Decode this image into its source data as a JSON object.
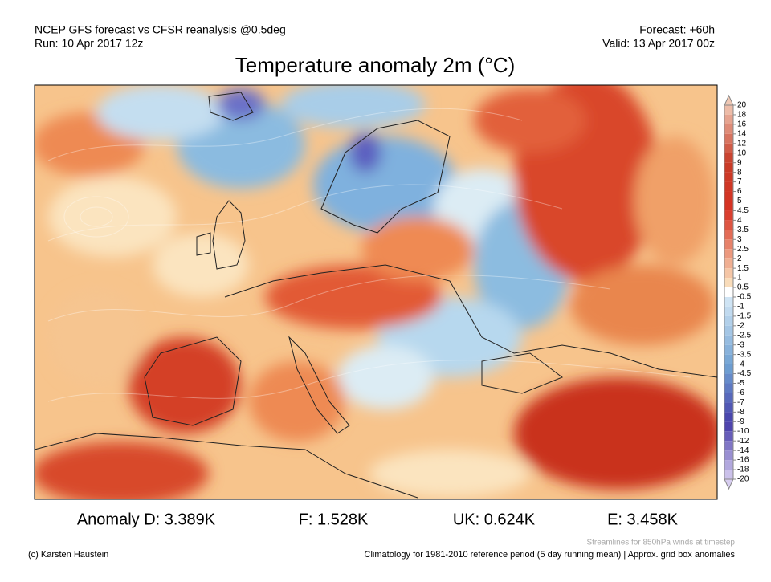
{
  "header": {
    "left_line1": "NCEP GFS forecast vs CFSR reanalysis @0.5deg",
    "left_line2": "Run: 10 Apr 2017 12z",
    "right_line1": "Forecast: +60h",
    "right_line2": "Valid: 13 Apr 2017 00z",
    "title": "Temperature anomaly 2m (°C)"
  },
  "colorbar": {
    "levels": [
      20,
      18,
      16,
      14,
      12,
      10,
      9,
      8,
      7,
      6,
      5,
      4.5,
      4,
      3.5,
      3,
      2.5,
      2,
      1.5,
      1,
      0.5,
      -0.5,
      -1,
      -1.5,
      -2,
      -2.5,
      -3,
      -3.5,
      -4,
      -4.5,
      -5,
      -6,
      -7,
      -8,
      -9,
      -10,
      -12,
      -14,
      -16,
      -18,
      -20
    ]
  },
  "anomalies": [
    "Anomaly D: 3.389K",
    "F: 1.528K",
    "UK: 0.624K",
    "E: 3.458K"
  ],
  "footer": {
    "streamlines": "Streamlines for 850hPa winds at timestep",
    "credit": "(c) Karsten Haustein",
    "climatology": "Climatology for 1981-2010 reference period (5 day running mean) | Approx. grid box anomalies"
  }
}
